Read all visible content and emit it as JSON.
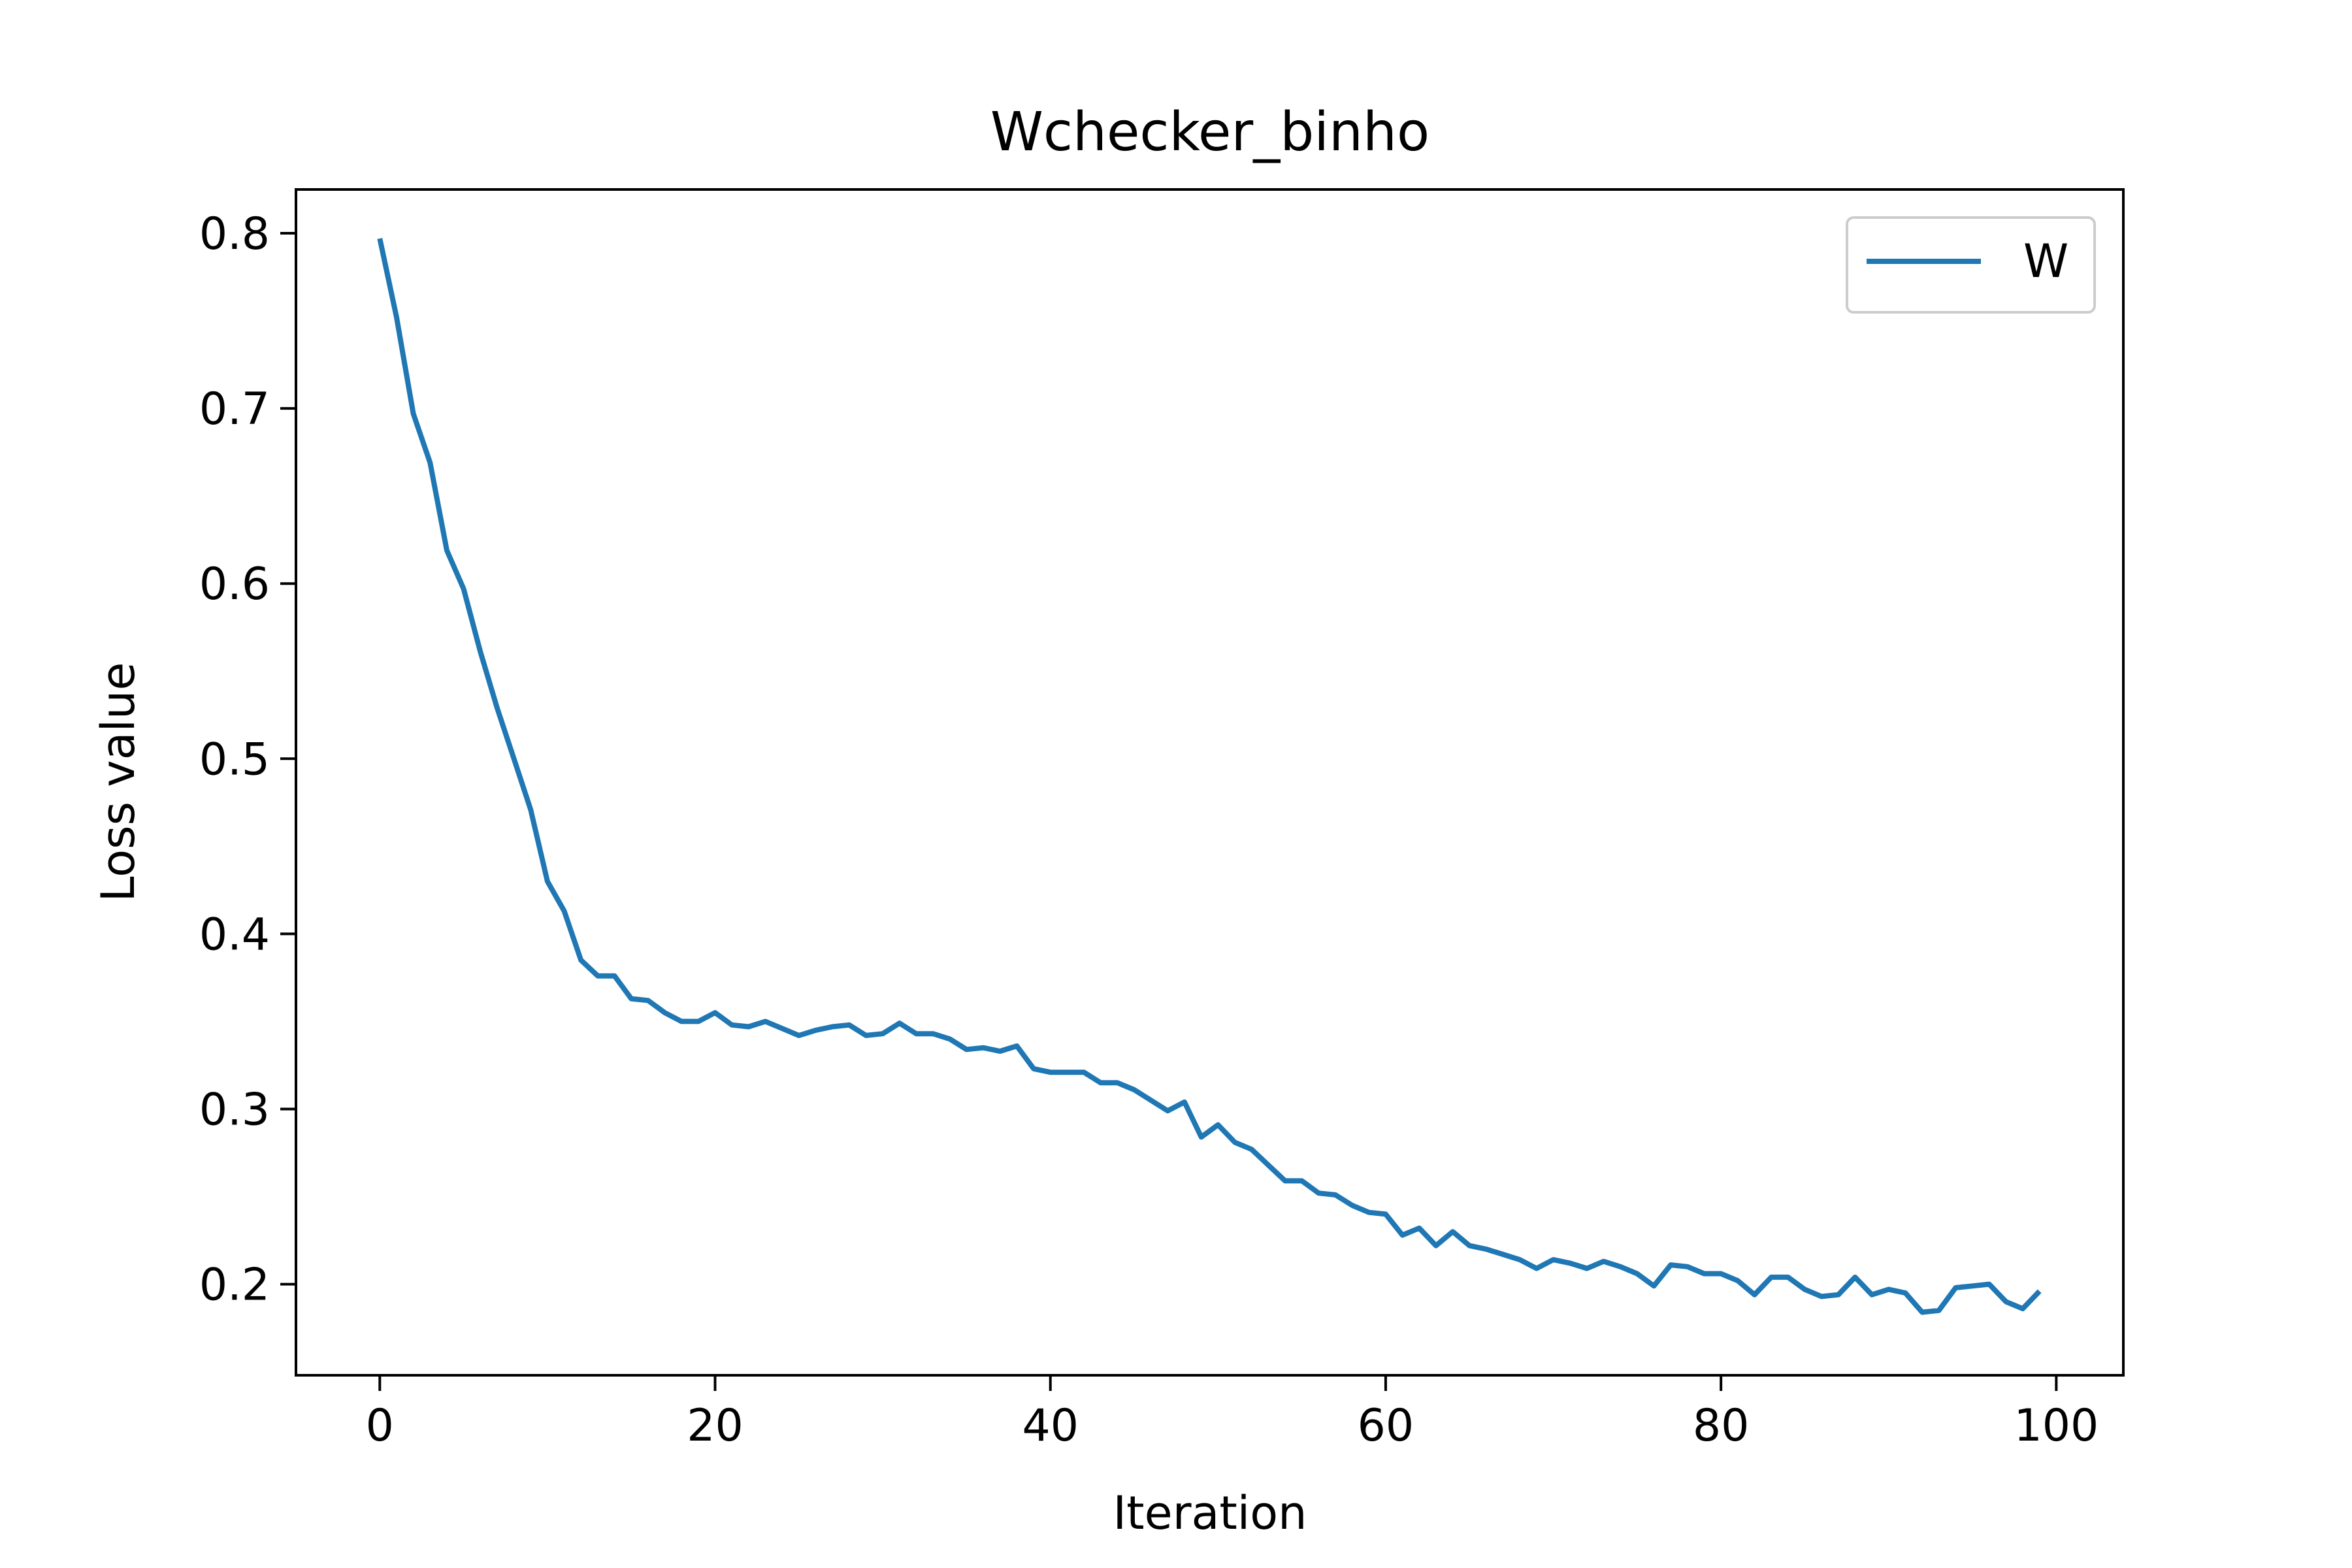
{
  "chart_data": {
    "type": "line",
    "title": "Wchecker_binho",
    "xlabel": "Iteration",
    "ylabel": "Loss value",
    "xlim": [
      -5,
      104
    ],
    "ylim": [
      0.148,
      0.825
    ],
    "xticks": [
      0,
      20,
      40,
      60,
      80,
      100
    ],
    "xtick_labels": [
      "0",
      "20",
      "40",
      "60",
      "80",
      "100"
    ],
    "yticks": [
      0.2,
      0.3,
      0.4,
      0.5,
      0.6,
      0.7,
      0.8
    ],
    "ytick_labels": [
      "0.2",
      "0.3",
      "0.4",
      "0.5",
      "0.6",
      "0.7",
      "0.8"
    ],
    "grid": false,
    "legend_position": "top-right",
    "series": [
      {
        "name": "W",
        "color": "#1f77b4",
        "x": [
          0,
          1,
          2,
          3,
          4,
          5,
          6,
          7,
          8,
          9,
          10,
          11,
          12,
          13,
          14,
          15,
          16,
          17,
          18,
          19,
          20,
          21,
          22,
          23,
          24,
          25,
          26,
          27,
          28,
          29,
          30,
          31,
          32,
          33,
          34,
          35,
          36,
          37,
          38,
          39,
          40,
          41,
          42,
          43,
          44,
          45,
          46,
          47,
          48,
          49,
          50,
          51,
          52,
          53,
          54,
          55,
          56,
          57,
          58,
          59,
          60,
          61,
          62,
          63,
          64,
          65,
          66,
          67,
          68,
          69,
          70,
          71,
          72,
          73,
          74,
          75,
          76,
          77,
          78,
          79,
          80,
          81,
          82,
          83,
          84,
          85,
          86,
          87,
          88,
          89,
          90,
          91,
          92,
          93,
          94,
          95,
          96,
          97,
          98,
          99
        ],
        "values": [
          0.797,
          0.752,
          0.697,
          0.669,
          0.619,
          0.597,
          0.561,
          0.529,
          0.5,
          0.471,
          0.43,
          0.413,
          0.385,
          0.376,
          0.376,
          0.363,
          0.362,
          0.355,
          0.35,
          0.35,
          0.355,
          0.348,
          0.347,
          0.35,
          0.346,
          0.342,
          0.345,
          0.347,
          0.348,
          0.342,
          0.343,
          0.349,
          0.343,
          0.343,
          0.34,
          0.334,
          0.335,
          0.333,
          0.336,
          0.323,
          0.321,
          0.321,
          0.321,
          0.315,
          0.315,
          0.311,
          0.305,
          0.299,
          0.304,
          0.284,
          0.291,
          0.281,
          0.277,
          0.268,
          0.259,
          0.259,
          0.252,
          0.251,
          0.245,
          0.241,
          0.24,
          0.228,
          0.232,
          0.222,
          0.23,
          0.222,
          0.22,
          0.217,
          0.214,
          0.209,
          0.214,
          0.212,
          0.209,
          0.213,
          0.21,
          0.206,
          0.199,
          0.211,
          0.21,
          0.206,
          0.206,
          0.202,
          0.194,
          0.204,
          0.204,
          0.197,
          0.193,
          0.194,
          0.204,
          0.194,
          0.197,
          0.195,
          0.184,
          0.185,
          0.198,
          0.199,
          0.2,
          0.19,
          0.186,
          0.196
        ]
      }
    ]
  }
}
